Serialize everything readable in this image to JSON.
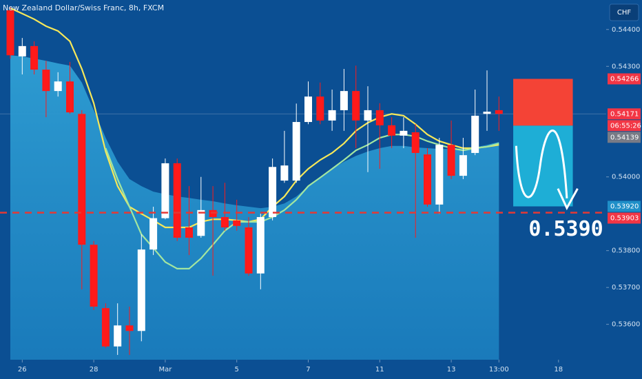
{
  "chart_data": {
    "type": "candlestick",
    "title": "New Zealand Dollar/Swiss Franc, 8h, FXCM",
    "currency_button": "CHF",
    "up_color": "#ffffff",
    "down_color": "#ff1a1a",
    "open": [
      0.54452,
      0.54327,
      0.54355,
      0.54291,
      0.54233,
      0.54259,
      0.54171,
      0.53816,
      0.53644,
      0.5354,
      0.53597,
      0.53582,
      0.53803,
      0.53888,
      0.54037,
      0.53863,
      0.5384,
      0.5391,
      0.53891,
      0.53882,
      0.53863,
      0.53738,
      0.53891,
      0.5399,
      0.5399,
      0.54149,
      0.54218,
      0.54153,
      0.54181,
      0.54233,
      0.54153,
      0.54181,
      0.5414,
      0.54112,
      0.54121,
      0.54061,
      0.53925,
      0.54087,
      0.54003,
      0.54065,
      0.54171,
      0.54181
    ],
    "high": [
      0.54461,
      0.54377,
      0.54368,
      0.54315,
      0.54284,
      0.54312,
      0.54181,
      0.53826,
      0.53657,
      0.53657,
      0.53648,
      0.53844,
      0.53919,
      0.5405,
      0.5405,
      0.53975,
      0.54,
      0.53975,
      0.53984,
      0.53938,
      0.53891,
      0.539,
      0.5405,
      0.54125,
      0.54199,
      0.54259,
      0.54256,
      0.54237,
      0.54293,
      0.54302,
      0.54246,
      0.542,
      0.54162,
      0.54162,
      0.54143,
      0.54078,
      0.54106,
      0.54153,
      0.54106,
      0.54237,
      0.54289,
      0.54218
    ],
    "low": [
      0.54321,
      0.54278,
      0.54278,
      0.54162,
      0.54218,
      0.54171,
      0.53695,
      0.53639,
      0.53536,
      0.53517,
      0.53517,
      0.53554,
      0.53788,
      0.53885,
      0.53826,
      0.53788,
      0.53835,
      0.53732,
      0.53854,
      0.53854,
      0.53732,
      0.53695,
      0.53882,
      0.53984,
      0.53984,
      0.54143,
      0.54143,
      0.54125,
      0.54125,
      0.54078,
      0.54013,
      0.54022,
      0.54078,
      0.54078,
      0.53835,
      0.53919,
      0.539,
      0.53994,
      0.53994,
      0.54059,
      0.54125,
      0.54125
    ],
    "close": [
      0.5433,
      0.54355,
      0.54291,
      0.54233,
      0.54259,
      0.54175,
      0.53816,
      0.53648,
      0.5354,
      0.53597,
      0.53582,
      0.53803,
      0.53888,
      0.54037,
      0.53835,
      0.53835,
      0.5391,
      0.53891,
      0.53863,
      0.53867,
      0.53738,
      0.53891,
      0.54027,
      0.54031,
      0.54149,
      0.54218,
      0.54153,
      0.54181,
      0.54233,
      0.54153,
      0.54181,
      0.5414,
      0.54112,
      0.54125,
      0.54065,
      0.53925,
      0.54087,
      0.54003,
      0.54059,
      0.54166,
      0.54177,
      0.54171
    ],
    "area": {
      "color": "#2b9ad0",
      "values": [
        0.5433,
        0.54327,
        0.54321,
        0.54315,
        0.54308,
        0.54302,
        0.54256,
        0.54181,
        0.54106,
        0.54041,
        0.53994,
        0.53975,
        0.5396,
        0.53953,
        0.53947,
        0.53943,
        0.53938,
        0.53934,
        0.53928,
        0.53923,
        0.53919,
        0.53915,
        0.53919,
        0.53928,
        0.53947,
        0.53975,
        0.53998,
        0.54022,
        0.54041,
        0.54057,
        0.54069,
        0.54078,
        0.54084,
        0.54084,
        0.5408,
        0.54078,
        0.54076,
        0.54076,
        0.54078,
        0.5408,
        0.54087,
        0.54095
      ]
    },
    "series": [
      {
        "color": "#f7e859",
        "values": [
          0.54458,
          0.54443,
          0.54428,
          0.54409,
          0.54396,
          0.54368,
          0.54293,
          0.542,
          0.54069,
          0.53975,
          0.53919,
          0.539,
          0.53882,
          0.53863,
          0.53863,
          0.53863,
          0.53878,
          0.53885,
          0.53885,
          0.53882,
          0.53878,
          0.53885,
          0.53919,
          0.53947,
          0.5399,
          0.54022,
          0.54046,
          0.54065,
          0.54091,
          0.54125,
          0.54147,
          0.54162,
          0.54171,
          0.54166,
          0.54143,
          0.54115,
          0.54097,
          0.54087,
          0.54078,
          0.54078,
          0.54082,
          0.54087
        ]
      },
      {
        "color": "#a3e6a0",
        "values": [
          null,
          null,
          null,
          null,
          null,
          null,
          null,
          null,
          0.54078,
          0.53994,
          0.53919,
          0.53844,
          0.53807,
          0.53769,
          0.53751,
          0.53751,
          0.53779,
          0.53816,
          0.53854,
          0.53878,
          0.53878,
          0.53878,
          0.53891,
          0.5391,
          0.53938,
          0.53975,
          0.53998,
          0.54022,
          0.54046,
          0.54072,
          0.54087,
          0.54106,
          0.54115,
          0.54115,
          0.5411,
          0.54097,
          0.54087,
          0.54078,
          0.54072,
          0.54078,
          0.54082,
          0.54091
        ]
      }
    ],
    "xlim": [
      -0.867,
      50
    ],
    "xticks": [
      {
        "value": 1,
        "label": "26"
      },
      {
        "value": 7,
        "label": "28"
      },
      {
        "value": 13,
        "label": "Mar"
      },
      {
        "value": 19,
        "label": "5"
      },
      {
        "value": 25,
        "label": "7"
      },
      {
        "value": 31,
        "label": "11"
      },
      {
        "value": 37,
        "label": "13"
      },
      {
        "value": 41,
        "label": "13:00"
      },
      {
        "value": 46,
        "label": "18"
      }
    ],
    "ylim": [
      0.53504,
      0.5448
    ],
    "yticks": [
      {
        "value": 0.544,
        "label": "0.54400"
      },
      {
        "value": 0.543,
        "label": "0.54300"
      },
      {
        "value": 0.54,
        "label": "0.54000"
      },
      {
        "value": 0.538,
        "label": "0.53800"
      },
      {
        "value": 0.537,
        "label": "0.53700"
      },
      {
        "value": 0.536,
        "label": "0.53600"
      }
    ],
    "grid": false,
    "price_markers": [
      {
        "value": 0.54266,
        "color": "#f23645"
      },
      {
        "value": 0.54171,
        "color": "#f23645"
      },
      {
        "value": 0.54139,
        "color": "#787b86"
      },
      {
        "value": 0.5392,
        "label": "0.53920",
        "color": "#1f8fc8"
      },
      {
        "value": 0.53903,
        "label": "0.53903",
        "color": "#f23645"
      }
    ],
    "countdown": "06:55:26",
    "current_price_line": 0.54171,
    "dashed_line": {
      "value": 0.53903,
      "color": "#e53935"
    },
    "position": {
      "stop": 0.54266,
      "entry": 0.54139,
      "target": 0.5392,
      "x": [
        42.2,
        47.2
      ],
      "stop_color": "#f44336",
      "target_color": "#1eaed6"
    },
    "annotation": "0.5390"
  }
}
